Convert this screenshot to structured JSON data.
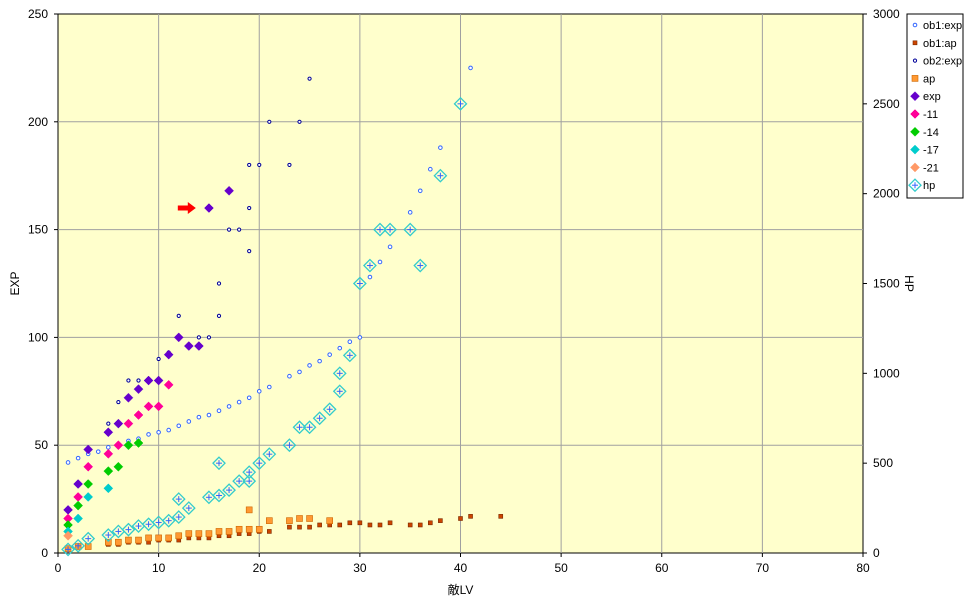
{
  "chart_data": {
    "type": "scatter",
    "xlabel": "敵LV",
    "ylabel": "EXP",
    "y2label": "HP",
    "xlim": [
      0,
      80
    ],
    "ylim": [
      0,
      250
    ],
    "y2lim": [
      0,
      3000
    ],
    "x_ticks": [
      "0",
      "10",
      "20",
      "30",
      "40",
      "50",
      "60",
      "70",
      "80"
    ],
    "y_ticks": [
      "0",
      "50",
      "100",
      "150",
      "200",
      "250"
    ],
    "y2_ticks": [
      "0",
      "500",
      "1000",
      "1500",
      "2000",
      "2500",
      "3000"
    ],
    "grid": true,
    "plot_background": "#FFFFCC",
    "legend_position": "right",
    "series": [
      {
        "name": "ob1:exp",
        "axis": "left",
        "marker": "small-circle",
        "color": "#3366FF",
        "points": [
          [
            1,
            42
          ],
          [
            2,
            44
          ],
          [
            3,
            46
          ],
          [
            4,
            47
          ],
          [
            5,
            49
          ],
          [
            6,
            50
          ],
          [
            7,
            52
          ],
          [
            8,
            53
          ],
          [
            9,
            55
          ],
          [
            10,
            56
          ],
          [
            11,
            57
          ],
          [
            12,
            59
          ],
          [
            13,
            61
          ],
          [
            14,
            63
          ],
          [
            15,
            64
          ],
          [
            16,
            66
          ],
          [
            17,
            68
          ],
          [
            18,
            70
          ],
          [
            19,
            72
          ],
          [
            20,
            75
          ],
          [
            21,
            77
          ],
          [
            23,
            82
          ],
          [
            24,
            84
          ],
          [
            25,
            87
          ],
          [
            26,
            89
          ],
          [
            27,
            92
          ],
          [
            28,
            95
          ],
          [
            29,
            98
          ],
          [
            30,
            100
          ],
          [
            31,
            128
          ],
          [
            32,
            135
          ],
          [
            33,
            142
          ],
          [
            35,
            158
          ],
          [
            36,
            168
          ],
          [
            37,
            178
          ],
          [
            38,
            188
          ],
          [
            41,
            225
          ]
        ]
      },
      {
        "name": "ob1:ap",
        "axis": "left",
        "marker": "small-square",
        "color": "#CC4400",
        "points": [
          [
            1,
            2
          ],
          [
            2,
            3
          ],
          [
            3,
            3
          ],
          [
            5,
            4
          ],
          [
            6,
            4
          ],
          [
            7,
            5
          ],
          [
            8,
            5
          ],
          [
            9,
            5
          ],
          [
            10,
            6
          ],
          [
            11,
            6
          ],
          [
            12,
            6
          ],
          [
            13,
            7
          ],
          [
            14,
            7
          ],
          [
            15,
            7
          ],
          [
            16,
            8
          ],
          [
            17,
            8
          ],
          [
            18,
            9
          ],
          [
            19,
            9
          ],
          [
            20,
            10
          ],
          [
            21,
            10
          ],
          [
            23,
            12
          ],
          [
            24,
            12
          ],
          [
            25,
            12
          ],
          [
            26,
            13
          ],
          [
            27,
            13
          ],
          [
            28,
            13
          ],
          [
            29,
            14
          ],
          [
            30,
            14
          ],
          [
            31,
            13
          ],
          [
            32,
            13
          ],
          [
            33,
            14
          ],
          [
            35,
            13
          ],
          [
            36,
            13
          ],
          [
            37,
            14
          ],
          [
            38,
            15
          ],
          [
            40,
            16
          ],
          [
            41,
            17
          ],
          [
            44,
            17
          ]
        ]
      },
      {
        "name": "ob2:exp",
        "axis": "left",
        "marker": "small-circle-dark",
        "color": "#000099",
        "points": [
          [
            5,
            60
          ],
          [
            6,
            70
          ],
          [
            7,
            80
          ],
          [
            8,
            80
          ],
          [
            10,
            90
          ],
          [
            11,
            93
          ],
          [
            12,
            110
          ],
          [
            14,
            100
          ],
          [
            15,
            100
          ],
          [
            16,
            110
          ],
          [
            16,
            125
          ],
          [
            17,
            150
          ],
          [
            18,
            150
          ],
          [
            19,
            140
          ],
          [
            19,
            160
          ],
          [
            19,
            180
          ],
          [
            20,
            180
          ],
          [
            21,
            200
          ],
          [
            23,
            180
          ],
          [
            24,
            200
          ],
          [
            25,
            220
          ]
        ]
      },
      {
        "name": "ap",
        "axis": "left",
        "marker": "square",
        "color": "#FF9933",
        "points": [
          [
            1,
            2
          ],
          [
            2,
            3
          ],
          [
            3,
            3
          ],
          [
            5,
            5
          ],
          [
            6,
            5
          ],
          [
            7,
            6
          ],
          [
            8,
            6
          ],
          [
            9,
            7
          ],
          [
            10,
            7
          ],
          [
            11,
            7
          ],
          [
            12,
            8
          ],
          [
            13,
            9
          ],
          [
            14,
            9
          ],
          [
            15,
            9
          ],
          [
            16,
            10
          ],
          [
            17,
            10
          ],
          [
            18,
            11
          ],
          [
            19,
            11
          ],
          [
            20,
            11
          ],
          [
            19,
            20
          ],
          [
            21,
            15
          ],
          [
            23,
            15
          ],
          [
            24,
            16
          ],
          [
            25,
            16
          ],
          [
            27,
            15
          ]
        ]
      },
      {
        "name": "exp",
        "axis": "left",
        "marker": "diamond",
        "color": "#6600CC",
        "points": [
          [
            1,
            20
          ],
          [
            2,
            32
          ],
          [
            3,
            48
          ],
          [
            5,
            56
          ],
          [
            6,
            60
          ],
          [
            7,
            72
          ],
          [
            8,
            76
          ],
          [
            9,
            80
          ],
          [
            10,
            80
          ],
          [
            11,
            92
          ],
          [
            12,
            100
          ],
          [
            13,
            96
          ],
          [
            14,
            96
          ],
          [
            15,
            160
          ],
          [
            17,
            168
          ]
        ]
      },
      {
        "name": "-11",
        "axis": "left",
        "marker": "diamond",
        "color": "#FF0099",
        "points": [
          [
            1,
            16
          ],
          [
            2,
            26
          ],
          [
            3,
            40
          ],
          [
            5,
            46
          ],
          [
            6,
            50
          ],
          [
            7,
            60
          ],
          [
            8,
            64
          ],
          [
            9,
            68
          ],
          [
            10,
            68
          ],
          [
            11,
            78
          ]
        ]
      },
      {
        "name": "-14",
        "axis": "left",
        "marker": "diamond",
        "color": "#00CC00",
        "points": [
          [
            1,
            13
          ],
          [
            2,
            22
          ],
          [
            3,
            32
          ],
          [
            5,
            38
          ],
          [
            6,
            40
          ],
          [
            7,
            50
          ],
          [
            8,
            51
          ]
        ]
      },
      {
        "name": "-17",
        "axis": "left",
        "marker": "diamond",
        "color": "#00CCCC",
        "points": [
          [
            1,
            10
          ],
          [
            2,
            16
          ],
          [
            3,
            26
          ],
          [
            5,
            30
          ]
        ]
      },
      {
        "name": "-21",
        "axis": "left",
        "marker": "diamond",
        "color": "#FF9966",
        "points": [
          [
            1,
            8
          ]
        ]
      },
      {
        "name": "hp",
        "axis": "right",
        "marker": "open-diamond-cross",
        "color": "#33CCCC",
        "points": [
          [
            1,
            20
          ],
          [
            2,
            40
          ],
          [
            3,
            80
          ],
          [
            5,
            100
          ],
          [
            6,
            120
          ],
          [
            7,
            130
          ],
          [
            8,
            150
          ],
          [
            9,
            160
          ],
          [
            10,
            170
          ],
          [
            11,
            180
          ],
          [
            12,
            200
          ],
          [
            12,
            300
          ],
          [
            13,
            250
          ],
          [
            15,
            310
          ],
          [
            16,
            320
          ],
          [
            16,
            500
          ],
          [
            17,
            350
          ],
          [
            18,
            400
          ],
          [
            19,
            400
          ],
          [
            19,
            450
          ],
          [
            20,
            500
          ],
          [
            21,
            550
          ],
          [
            23,
            600
          ],
          [
            24,
            700
          ],
          [
            25,
            700
          ],
          [
            26,
            750
          ],
          [
            27,
            800
          ],
          [
            28,
            900
          ],
          [
            28,
            1000
          ],
          [
            29,
            1100
          ],
          [
            30,
            1500
          ],
          [
            31,
            1600
          ],
          [
            32,
            1800
          ],
          [
            33,
            1800
          ],
          [
            35,
            1800
          ],
          [
            36,
            1600
          ],
          [
            38,
            2100
          ],
          [
            40,
            2500
          ]
        ]
      }
    ],
    "annotation": {
      "shape": "arrow",
      "color": "#FF0000",
      "x": 13,
      "y": 160,
      "direction": "right"
    }
  }
}
